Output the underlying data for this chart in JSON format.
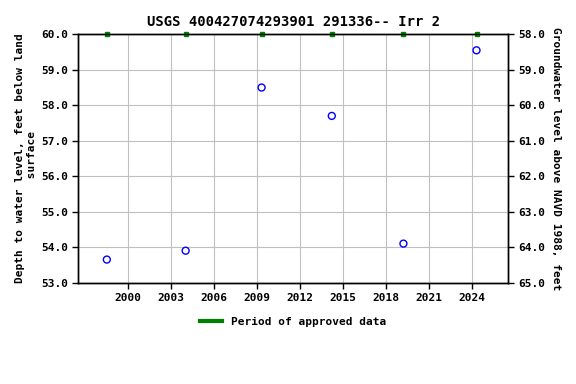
{
  "title": "USGS 400427074293901 291336-- Irr 2",
  "x_data": [
    1998.5,
    2004.0,
    2009.3,
    2014.2,
    2019.2,
    2024.3
  ],
  "y_data": [
    53.65,
    53.9,
    58.5,
    57.7,
    54.1,
    59.55
  ],
  "left_ylabel": "Depth to water level, feet below land\n surface",
  "right_ylabel": "Groundwater level above NAVD 1988, feet",
  "ylim_left_top": 53.0,
  "ylim_left_bottom": 60.0,
  "ylim_right_top": 65.0,
  "ylim_right_bottom": 58.0,
  "xlim": [
    1996.5,
    2026.5
  ],
  "xticks": [
    2000,
    2003,
    2006,
    2009,
    2012,
    2015,
    2018,
    2021,
    2024
  ],
  "yticks_left": [
    53.0,
    54.0,
    55.0,
    56.0,
    57.0,
    58.0,
    59.0,
    60.0
  ],
  "yticks_right": [
    65.0,
    64.0,
    63.0,
    62.0,
    61.0,
    60.0,
    59.0,
    58.0
  ],
  "marker_color": "#0000FF",
  "marker_facecolor": "none",
  "marker_style": "o",
  "marker_size": 5,
  "marker_linewidth": 1.0,
  "grid_color": "#c0c0c0",
  "bg_color": "#ffffff",
  "legend_label": "Period of approved data",
  "legend_color": "#008000",
  "green_marker_x": [
    1998.5,
    2004.0,
    2009.3,
    2014.2,
    2019.2,
    2024.3
  ],
  "title_fontsize": 10,
  "axis_label_fontsize": 8,
  "tick_fontsize": 8
}
